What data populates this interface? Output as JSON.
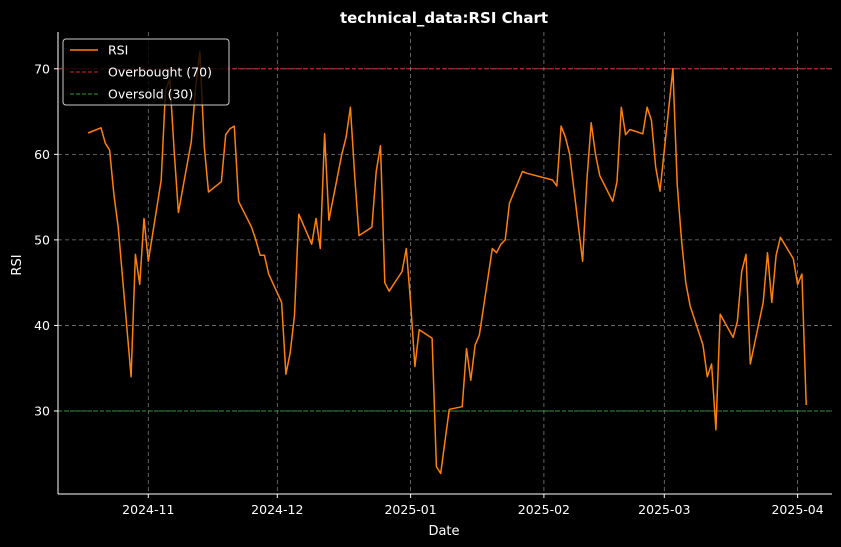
{
  "chart_data": {
    "type": "line",
    "title": "technical_data:RSI Chart",
    "xlabel": "Date",
    "ylabel": "RSI",
    "xlim": [
      "2024-10-11",
      "2025-04-09"
    ],
    "ylim": [
      20.3,
      74.3
    ],
    "x_ticks": [
      "2024-11-01",
      "2024-12-01",
      "2025-01-01",
      "2025-02-01",
      "2025-03-01",
      "2025-04-01"
    ],
    "x_tick_labels": [
      "2024-11",
      "2024-12",
      "2025-01",
      "2025-02",
      "2025-03",
      "2025-04"
    ],
    "y_ticks": [
      30,
      40,
      50,
      60,
      70
    ],
    "y_tick_labels": [
      "30",
      "40",
      "50",
      "60",
      "70"
    ],
    "grid": true,
    "legend_position": "top-left",
    "series": [
      {
        "name": "RSI",
        "color": "#ff7f0e",
        "style": "solid",
        "points": [
          [
            "2024-10-18",
            62.5
          ],
          [
            "2024-10-21",
            63.1
          ],
          [
            "2024-10-22",
            61.3
          ],
          [
            "2024-10-23",
            60.5
          ],
          [
            "2024-10-24",
            55.3
          ],
          [
            "2024-10-25",
            51.5
          ],
          [
            "2024-10-28",
            34.0
          ],
          [
            "2024-10-29",
            48.3
          ],
          [
            "2024-10-30",
            44.8
          ],
          [
            "2024-10-31",
            52.5
          ],
          [
            "2024-11-01",
            47.5
          ],
          [
            "2024-11-04",
            57.0
          ],
          [
            "2024-11-05",
            67.5
          ],
          [
            "2024-11-06",
            68.8
          ],
          [
            "2024-11-07",
            60.5
          ],
          [
            "2024-11-08",
            53.2
          ],
          [
            "2024-11-11",
            61.5
          ],
          [
            "2024-11-12",
            67.8
          ],
          [
            "2024-11-13",
            72.0
          ],
          [
            "2024-11-14",
            61.0
          ],
          [
            "2024-11-15",
            55.6
          ],
          [
            "2024-11-18",
            56.8
          ],
          [
            "2024-11-19",
            62.3
          ],
          [
            "2024-11-20",
            63.0
          ],
          [
            "2024-11-21",
            63.3
          ],
          [
            "2024-11-22",
            54.5
          ],
          [
            "2024-11-25",
            51.5
          ],
          [
            "2024-11-26",
            50.0
          ],
          [
            "2024-11-27",
            48.2
          ],
          [
            "2024-11-28",
            48.2
          ],
          [
            "2024-11-29",
            46.0
          ],
          [
            "2024-12-02",
            42.7
          ],
          [
            "2024-12-03",
            34.3
          ],
          [
            "2024-12-04",
            36.8
          ],
          [
            "2024-12-05",
            41.2
          ],
          [
            "2024-12-06",
            53.0
          ],
          [
            "2024-12-09",
            49.5
          ],
          [
            "2024-12-10",
            52.5
          ],
          [
            "2024-12-11",
            49.0
          ],
          [
            "2024-12-12",
            62.4
          ],
          [
            "2024-12-13",
            52.3
          ],
          [
            "2024-12-16",
            60.0
          ],
          [
            "2024-12-17",
            62.0
          ],
          [
            "2024-12-18",
            65.5
          ],
          [
            "2024-12-19",
            57.5
          ],
          [
            "2024-12-20",
            50.5
          ],
          [
            "2024-12-23",
            51.5
          ],
          [
            "2024-12-24",
            58.0
          ],
          [
            "2024-12-25",
            61.0
          ],
          [
            "2024-12-26",
            45.0
          ],
          [
            "2024-12-27",
            44.0
          ],
          [
            "2024-12-30",
            46.3
          ],
          [
            "2024-12-31",
            49.0
          ],
          [
            "2025-01-01",
            42.7
          ],
          [
            "2025-01-02",
            35.2
          ],
          [
            "2025-01-03",
            39.5
          ],
          [
            "2025-01-06",
            38.5
          ],
          [
            "2025-01-07",
            23.5
          ],
          [
            "2025-01-08",
            22.7
          ],
          [
            "2025-01-09",
            26.5
          ],
          [
            "2025-01-10",
            30.2
          ],
          [
            "2025-01-13",
            30.5
          ],
          [
            "2025-01-14",
            37.3
          ],
          [
            "2025-01-15",
            33.6
          ],
          [
            "2025-01-16",
            37.7
          ],
          [
            "2025-01-17",
            38.9
          ],
          [
            "2025-01-20",
            49.0
          ],
          [
            "2025-01-21",
            48.5
          ],
          [
            "2025-01-22",
            49.5
          ],
          [
            "2025-01-23",
            50.0
          ],
          [
            "2025-01-24",
            54.3
          ],
          [
            "2025-01-27",
            58.0
          ],
          [
            "2025-01-28",
            57.8
          ],
          [
            "2025-02-03",
            57.0
          ],
          [
            "2025-02-04",
            56.3
          ],
          [
            "2025-02-05",
            63.3
          ],
          [
            "2025-02-06",
            62.0
          ],
          [
            "2025-02-07",
            60.0
          ],
          [
            "2025-02-10",
            47.5
          ],
          [
            "2025-02-11",
            57.0
          ],
          [
            "2025-02-12",
            63.7
          ],
          [
            "2025-02-13",
            60.0
          ],
          [
            "2025-02-14",
            57.5
          ],
          [
            "2025-02-17",
            54.5
          ],
          [
            "2025-02-18",
            56.8
          ],
          [
            "2025-02-19",
            65.5
          ],
          [
            "2025-02-20",
            62.3
          ],
          [
            "2025-02-21",
            62.9
          ],
          [
            "2025-02-24",
            62.4
          ],
          [
            "2025-02-25",
            65.5
          ],
          [
            "2025-02-26",
            64.0
          ],
          [
            "2025-02-27",
            58.5
          ],
          [
            "2025-02-28",
            55.7
          ],
          [
            "2025-03-03",
            70.0
          ],
          [
            "2025-03-04",
            56.5
          ],
          [
            "2025-03-05",
            50.0
          ],
          [
            "2025-03-06",
            45.0
          ],
          [
            "2025-03-07",
            42.3
          ],
          [
            "2025-03-10",
            37.7
          ],
          [
            "2025-03-11",
            34.0
          ],
          [
            "2025-03-12",
            35.5
          ],
          [
            "2025-03-13",
            27.8
          ],
          [
            "2025-03-14",
            41.3
          ],
          [
            "2025-03-17",
            38.6
          ],
          [
            "2025-03-18",
            40.5
          ],
          [
            "2025-03-19",
            46.3
          ],
          [
            "2025-03-20",
            48.3
          ],
          [
            "2025-03-21",
            35.5
          ],
          [
            "2025-03-24",
            42.7
          ],
          [
            "2025-03-25",
            48.5
          ],
          [
            "2025-03-26",
            42.7
          ],
          [
            "2025-03-27",
            48.2
          ],
          [
            "2025-03-28",
            50.3
          ],
          [
            "2025-03-31",
            47.8
          ],
          [
            "2025-04-01",
            44.8
          ],
          [
            "2025-04-02",
            46.0
          ],
          [
            "2025-04-03",
            30.7
          ]
        ]
      },
      {
        "name": "Overbought (70)",
        "color": "#d62728",
        "style": "dashed",
        "y": 70
      },
      {
        "name": "Oversold (30)",
        "color": "#2ca02c",
        "style": "dashed",
        "y": 30
      }
    ]
  }
}
